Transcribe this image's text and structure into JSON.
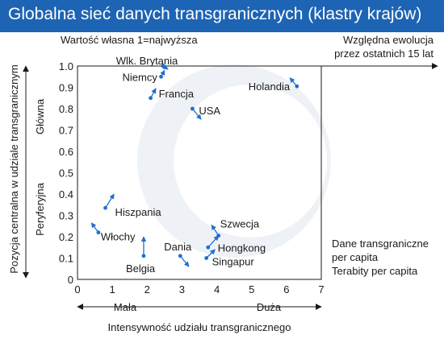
{
  "header": {
    "title": "Globalna sieć danych transgranicznych (klastry krajów)"
  },
  "colors": {
    "header_bg": "#1e64b4",
    "point": "#1e6fd0",
    "text": "#1a1a1a",
    "watermark": "#eef1f6"
  },
  "chart_data": {
    "type": "scatter",
    "title": "Globalna sieć danych transgranicznych (klastry krajów)",
    "xlabel": "Intensywność udziału transgranicznego",
    "ylabel": "Pozycja centralna w udziale transgranicznym",
    "xlim": [
      0,
      7
    ],
    "ylim": [
      0,
      1.0
    ],
    "x_ticks": [
      "0",
      "1",
      "2",
      "3",
      "4",
      "5",
      "6",
      "7"
    ],
    "y_ticks": [
      "0",
      "0.1",
      "0.2",
      "0.3",
      "0.4",
      "0.5",
      "0.6",
      "0.7",
      "0.8",
      "0.9",
      "1.0"
    ],
    "x_annotations": {
      "low": "Mała",
      "high": "Duża"
    },
    "y_annotations": {
      "low": "Peryferyjna",
      "high": "Główna"
    },
    "top_note": "Wartość własna 1=najwyższa",
    "trend_note": [
      "Względna ewolucja",
      "przez ostatnich 15 lat"
    ],
    "side_note": [
      "Dane transgraniczne",
      "per capita",
      "Terabity per capita"
    ],
    "grid": false,
    "points": [
      {
        "label": "Wlk. Brytania",
        "x": 2.45,
        "y": 1.0,
        "trend": [
          2.6,
          0.985
        ]
      },
      {
        "label": "Niemcy",
        "x": 2.4,
        "y": 0.95,
        "trend": [
          2.5,
          0.98
        ]
      },
      {
        "label": "Francja",
        "x": 2.1,
        "y": 0.85,
        "trend": [
          2.25,
          0.895
        ]
      },
      {
        "label": "USA",
        "x": 3.3,
        "y": 0.8,
        "trend": [
          3.55,
          0.75
        ]
      },
      {
        "label": "Holandia",
        "x": 6.3,
        "y": 0.905,
        "trend": [
          6.1,
          0.945
        ]
      },
      {
        "label": "Hiszpania",
        "x": 0.8,
        "y": 0.335,
        "trend": [
          1.05,
          0.4
        ]
      },
      {
        "label": "Włochy",
        "x": 0.6,
        "y": 0.22,
        "trend": [
          0.4,
          0.265
        ]
      },
      {
        "label": "Belgia",
        "x": 1.9,
        "y": 0.11,
        "trend": [
          1.9,
          0.2
        ]
      },
      {
        "label": "Dania",
        "x": 2.95,
        "y": 0.11,
        "trend": [
          3.2,
          0.06
        ]
      },
      {
        "label": "Szwecja",
        "x": 4.05,
        "y": 0.205,
        "trend": [
          3.85,
          0.255
        ]
      },
      {
        "label": "Hongkong",
        "x": 3.75,
        "y": 0.15,
        "trend": [
          4.05,
          0.205
        ]
      },
      {
        "label": "Singapur",
        "x": 3.7,
        "y": 0.1,
        "trend": [
          3.95,
          0.14
        ]
      }
    ]
  }
}
